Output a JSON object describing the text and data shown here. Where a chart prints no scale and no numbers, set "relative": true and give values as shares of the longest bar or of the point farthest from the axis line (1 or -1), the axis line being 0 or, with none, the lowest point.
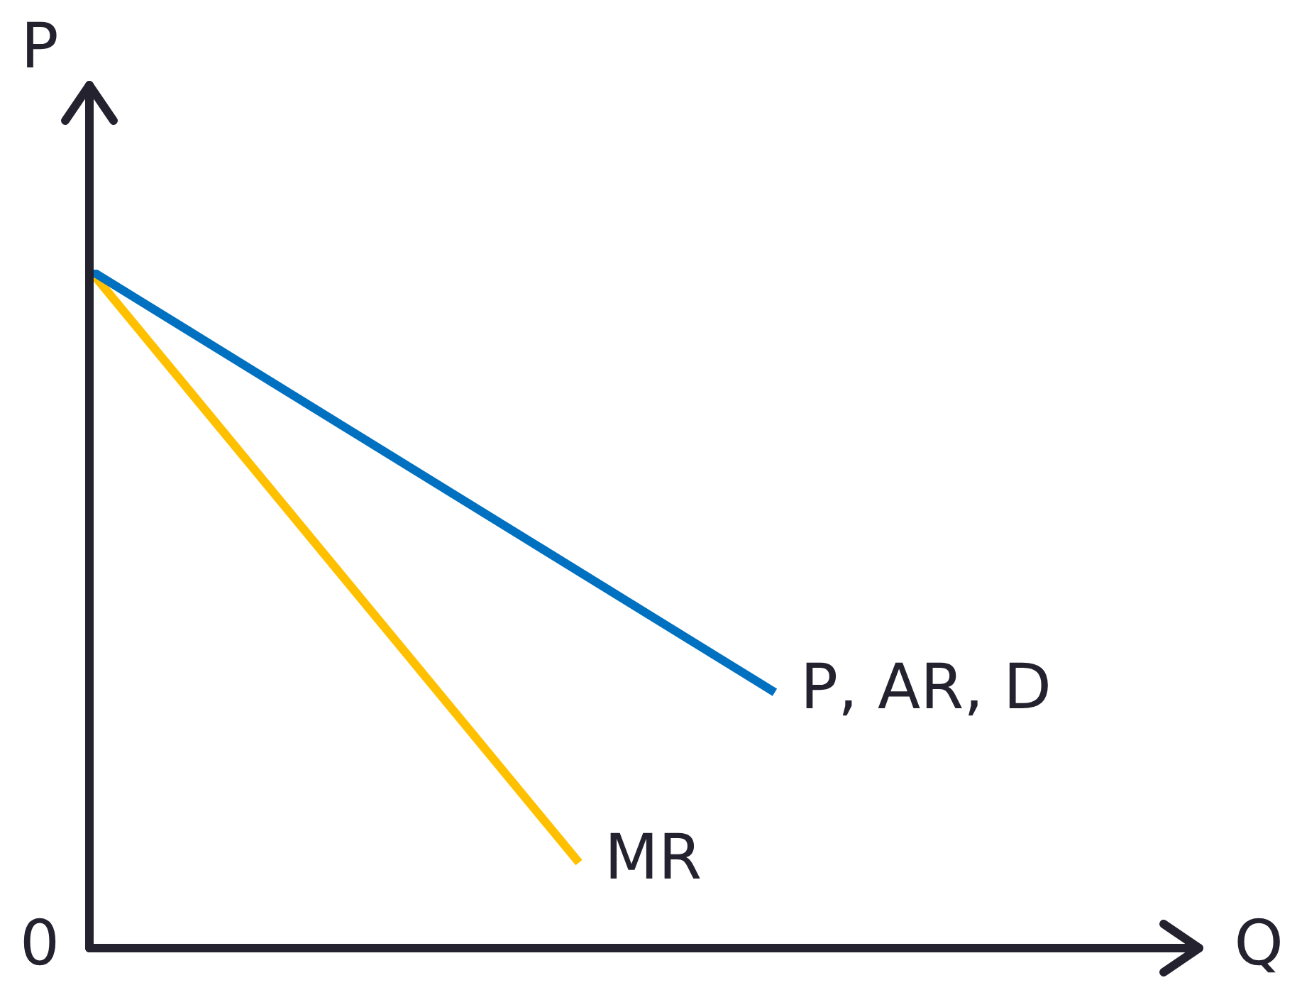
{
  "chart_data": {
    "type": "line",
    "ylabel": "P",
    "relative": true,
    "legend": false,
    "marker": "none",
    "annotations": [
      "0",
      "Q"
    ],
    "categories": [
      null,
      null,
      null,
      null,
      null,
      null,
      null,
      null
    ],
    "series": [
      {
        "name": "P, AR, D",
        "color": "#0070c0",
        "values": [
          1,
          null,
          null,
          null,
          null,
          null,
          null,
          0.377
        ]
      },
      {
        "name": "MR",
        "color": "#ffc000",
        "values": [
          1,
          null,
          null,
          null,
          null,
          0.126,
          null,
          null
        ]
      }
    ]
  }
}
